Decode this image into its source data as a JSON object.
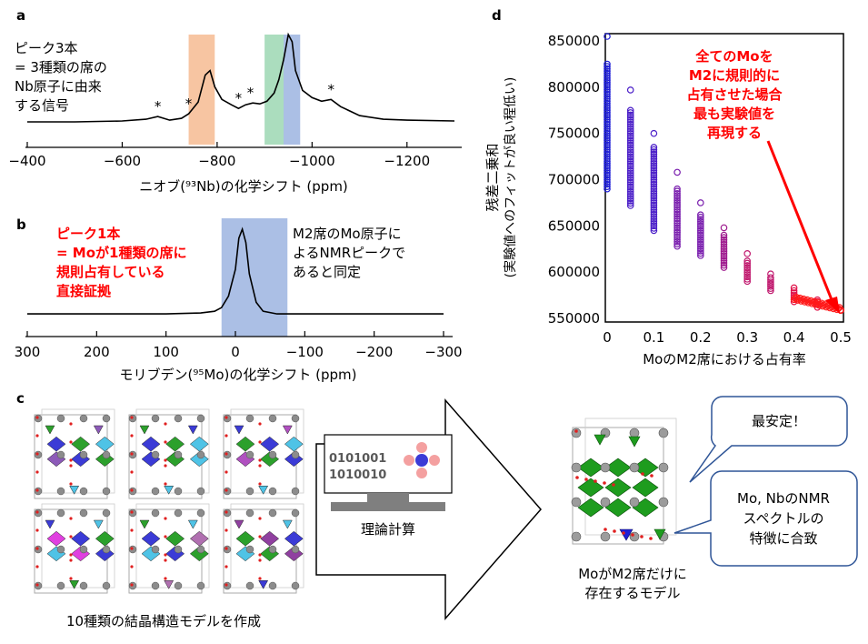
{
  "panel_a": {
    "label": "a",
    "note": [
      "ピーク3本",
      "= 3種類の席の",
      "Nb原子に由来",
      "する信号"
    ],
    "xlabel": "ニオブ(⁹³Nb)の化学シフト (ppm)",
    "ticks": [
      "−400",
      "−600",
      "−800",
      "−1000",
      "−1200"
    ],
    "tick_values": [
      -400,
      -600,
      -800,
      -1000,
      -1200
    ],
    "xlim": [
      -400,
      -1300
    ],
    "star_positions": [
      -675,
      -740,
      -845,
      -870,
      -1040
    ],
    "star": "*",
    "bands": [
      {
        "from": -740,
        "to": -795,
        "color": "#f4b183"
      },
      {
        "from": -900,
        "to": -940,
        "color": "#8fd1a8"
      },
      {
        "from": -940,
        "to": -975,
        "color": "#8faadc"
      }
    ],
    "spectrum": [
      [
        -400,
        0.03
      ],
      [
        -500,
        0.03
      ],
      [
        -600,
        0.04
      ],
      [
        -650,
        0.06
      ],
      [
        -675,
        0.09
      ],
      [
        -700,
        0.05
      ],
      [
        -725,
        0.07
      ],
      [
        -740,
        0.12
      ],
      [
        -760,
        0.25
      ],
      [
        -775,
        0.55
      ],
      [
        -785,
        0.6
      ],
      [
        -795,
        0.42
      ],
      [
        -810,
        0.28
      ],
      [
        -830,
        0.22
      ],
      [
        -845,
        0.18
      ],
      [
        -860,
        0.22
      ],
      [
        -875,
        0.24
      ],
      [
        -890,
        0.23
      ],
      [
        -905,
        0.26
      ],
      [
        -920,
        0.35
      ],
      [
        -930,
        0.5
      ],
      [
        -940,
        0.72
      ],
      [
        -950,
        1.0
      ],
      [
        -958,
        0.92
      ],
      [
        -965,
        0.6
      ],
      [
        -980,
        0.38
      ],
      [
        -1000,
        0.3
      ],
      [
        -1020,
        0.26
      ],
      [
        -1040,
        0.28
      ],
      [
        -1060,
        0.2
      ],
      [
        -1100,
        0.1
      ],
      [
        -1150,
        0.06
      ],
      [
        -1200,
        0.05
      ],
      [
        -1300,
        0.04
      ]
    ]
  },
  "panel_b": {
    "label": "b",
    "note_red": [
      "ピーク1本",
      "= Moが1種類の席に",
      "規則占有している",
      "直接証拠"
    ],
    "note_black": [
      "M2席のMo原子に",
      "よるNMRピークで",
      "あると同定"
    ],
    "xlabel": "モリブデン(⁹⁵Mo)の化学シフト (ppm)",
    "ticks": [
      "300",
      "200",
      "100",
      "0",
      "−100",
      "−200",
      "−300"
    ],
    "tick_values": [
      300,
      200,
      100,
      0,
      -100,
      -200,
      -300
    ],
    "xlim": [
      300,
      -300
    ],
    "band": {
      "from": 20,
      "to": -75,
      "color": "#8faadc"
    },
    "spectrum": [
      [
        300,
        0.05
      ],
      [
        200,
        0.05
      ],
      [
        100,
        0.05
      ],
      [
        50,
        0.06
      ],
      [
        30,
        0.08
      ],
      [
        20,
        0.12
      ],
      [
        10,
        0.25
      ],
      [
        0,
        0.55
      ],
      [
        -5,
        0.9
      ],
      [
        -10,
        1.0
      ],
      [
        -15,
        0.85
      ],
      [
        -20,
        0.5
      ],
      [
        -30,
        0.18
      ],
      [
        -40,
        0.08
      ],
      [
        -60,
        0.05
      ],
      [
        -150,
        0.05
      ],
      [
        -300,
        0.05
      ]
    ]
  },
  "panel_d": {
    "label": "d",
    "ylabel_line1": "残差二乗和",
    "ylabel_line2": "(実験値へのフィットが良い程低い)",
    "xlabel": "MoのM2席における占有率",
    "xticks": [
      "0",
      "0.1",
      "0.2",
      "0.3",
      "0.4",
      "0.5"
    ],
    "xtick_values": [
      0,
      0.1,
      0.2,
      0.3,
      0.4,
      0.5
    ],
    "yticks": [
      "850000",
      "800000",
      "750000",
      "700000",
      "650000",
      "600000",
      "550000"
    ],
    "ytick_values": [
      850000,
      800000,
      750000,
      700000,
      650000,
      600000,
      550000
    ],
    "annotation": [
      "全てのMoを",
      "M2に規則的に",
      "占有させた場合",
      "最も実験値を",
      "再現する"
    ]
  },
  "chart_data": {
    "type": "scatter",
    "xlabel": "MoのM2席における占有率",
    "ylabel": "残差二乗和 (実験値へのフィットが良い程低い)",
    "xlim": [
      0,
      0.5
    ],
    "ylim": [
      550000,
      855000
    ],
    "colors": [
      "#1f1fd6",
      "#4b1fc8",
      "#7a1fae",
      "#9e1a8e",
      "#c0196e",
      "#e0134a",
      "#ff1010"
    ],
    "clusters": [
      {
        "x": 0.0,
        "outlier": 855000,
        "range": [
          690000,
          825000
        ]
      },
      {
        "x": 0.05,
        "outlier": 797000,
        "range": [
          672000,
          775000
        ]
      },
      {
        "x": 0.1,
        "outlier": 750000,
        "range": [
          645000,
          735000
        ]
      },
      {
        "x": 0.15,
        "outlier": 708000,
        "range": [
          628000,
          690000
        ]
      },
      {
        "x": 0.2,
        "outlier": 675000,
        "range": [
          618000,
          662000
        ]
      },
      {
        "x": 0.25,
        "outlier": 648000,
        "range": [
          605000,
          640000
        ]
      },
      {
        "x": 0.3,
        "outlier": 620000,
        "range": [
          590000,
          612000
        ]
      },
      {
        "x": 0.35,
        "outlier": 598000,
        "range": [
          580000,
          594000
        ]
      },
      {
        "x": 0.4,
        "outlier": 583000,
        "range": [
          568000,
          580000
        ]
      },
      {
        "x": 0.45,
        "outlier": 570000,
        "range": [
          562000,
          568000
        ]
      },
      {
        "x": 0.5,
        "outlier": 559000,
        "range": [
          559000,
          559000
        ]
      }
    ]
  },
  "panel_c": {
    "label": "c",
    "caption_left": "10種類の結晶構造モデルを作成",
    "binary_line1": "0101001",
    "binary_line2": "1010010",
    "calc_label": "理論計算",
    "caption_right_line1": "MoがM2席だけに",
    "caption_right_line2": "存在するモデル",
    "bubble1": "最安定！",
    "bubble2": [
      "Mo, NbのNMR",
      "スペクトルの",
      "特徴に合致"
    ]
  }
}
